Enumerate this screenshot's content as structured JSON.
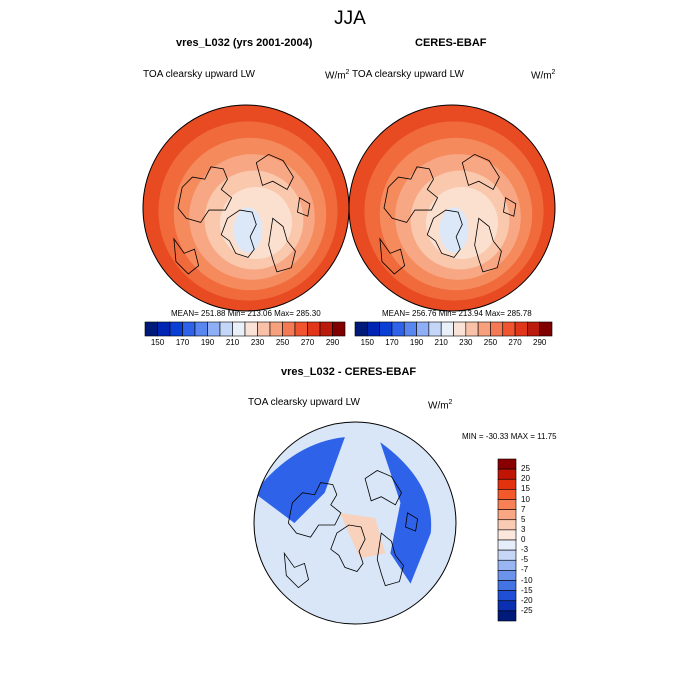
{
  "figure": {
    "title": "JJA",
    "panels": [
      {
        "title": "vres_L032 (yrs 2001-2004)",
        "variable": "TOA clearsky upward LW",
        "units_base": "W/m",
        "units_exp": "2",
        "stats": "MEAN= 251.88  Min= 213.06  Max= 285.30"
      },
      {
        "title": "CERES-EBAF",
        "variable": "TOA clearsky upward LW",
        "units_base": "W/m",
        "units_exp": "2",
        "stats": "MEAN= 256.76  Min= 213.94  Max= 285.78"
      },
      {
        "title": "vres_L032 - CERES-EBAF",
        "variable": "TOA clearsky upward LW",
        "units_base": "W/m",
        "units_exp": "2",
        "stats": "MIN = -30.33 MAX =  11.75"
      }
    ]
  },
  "colorbars": {
    "absolute": {
      "ticks": [
        "150",
        "170",
        "190",
        "210",
        "230",
        "250",
        "270",
        "290"
      ],
      "colors": [
        "#001a7a",
        "#0025b5",
        "#0a3fd6",
        "#2e62e8",
        "#5a86f0",
        "#8eaef5",
        "#c3d6f8",
        "#eaf0f8",
        "#fbe2d6",
        "#f9c2a8",
        "#f7a07e",
        "#f47a55",
        "#f0552f",
        "#e1361a",
        "#bb1b0c",
        "#800000"
      ]
    },
    "difference": {
      "ticks": [
        "25",
        "20",
        "15",
        "10",
        "7",
        "5",
        "3",
        "0",
        "-3",
        "-5",
        "-7",
        "-10",
        "-15",
        "-20",
        "-25"
      ],
      "colors": [
        "#8a0000",
        "#c01505",
        "#e3320f",
        "#f4592c",
        "#f88057",
        "#f8a683",
        "#f9cbb3",
        "#fbe7dc",
        "#e6eef9",
        "#c5d6f6",
        "#99b5f2",
        "#6c93ec",
        "#4473e4",
        "#1f4fd6",
        "#0a2fb0",
        "#001a7a"
      ]
    }
  },
  "maps": {
    "abs_ring_colors": [
      "#e84a22",
      "#f06a3c",
      "#f58a5c",
      "#f7a783",
      "#f9c8ad",
      "#fbe0d0"
    ],
    "abs_ice_color": "#dce8f8",
    "diff_ocean_color": "#d8e6f8",
    "diff_positive_color": "#f8d2bc",
    "diff_negative_color": "#2e62e8"
  }
}
